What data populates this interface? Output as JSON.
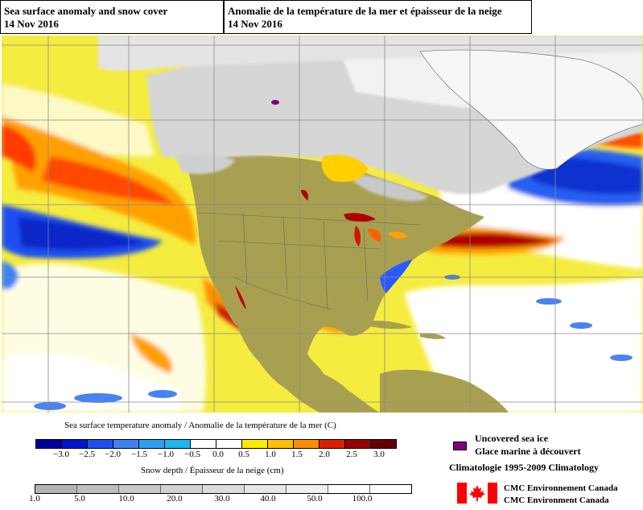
{
  "header": {
    "left_title": "Sea surface anomaly and snow cover",
    "left_date": "14 Nov 2016",
    "right_title": "Anomalie de la température de la mer et épaisseur de la neige",
    "right_date": "14 Nov 2016"
  },
  "legend": {
    "sst_title": "Sea surface temperature anomaly / Anomalie de la température de la mer (C)",
    "sst_ticks": [
      "−3.0",
      "−2.5",
      "−2.0",
      "−1.5",
      "−1.0",
      "−0.5",
      "0.0",
      "0.5",
      "1.0",
      "1.5",
      "2.0",
      "2.5",
      "3.0"
    ],
    "sst_colors": [
      "#0000a0",
      "#0014d2",
      "#1e50f0",
      "#3c82f5",
      "#2fa0f0",
      "#19b8f0",
      "#ffffff",
      "#ffffff",
      "#ffea00",
      "#ffc000",
      "#ff8c00",
      "#dc1e00",
      "#960000",
      "#640000"
    ],
    "snow_title": "Snow depth / Épaisseur de la neige (cm)",
    "snow_ticks": [
      "1.0",
      "5.0",
      "10.0",
      "20.0",
      "30.0",
      "40.0",
      "50.0",
      "100.0"
    ],
    "snow_colors": [
      "#b4b4b4",
      "#bebebe",
      "#c8c8c8",
      "#d2d2d2",
      "#dcdcdc",
      "#e6e6e6",
      "#f0f0f0",
      "#ffffff",
      "#ffffff"
    ],
    "sea_ice_label_en": "Uncovered sea ice",
    "sea_ice_label_fr": "Glace marine à découvert",
    "sea_ice_color": "#800080",
    "climatology": "Climatologie 1995-2009 Climatology",
    "cmc_line1": "CMC Environnement Canada",
    "cmc_line2": "CMC Environment Canada"
  },
  "colors": {
    "land": "#a8a050",
    "snow_light": "#e8e8e8",
    "snow_mid": "#c8c8c8",
    "ocean_neutral": "#ffffff",
    "flag_red": "#ff0000"
  }
}
